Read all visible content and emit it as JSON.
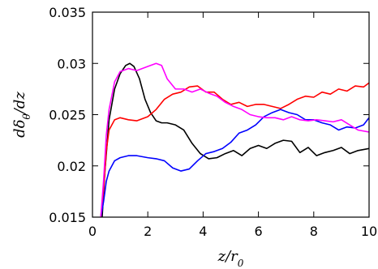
{
  "chart_data": {
    "type": "line",
    "xlabel": "z/r0",
    "ylabel": "dδθ/dz",
    "xlim": [
      0,
      10
    ],
    "ylim": [
      0.015,
      0.035
    ],
    "xticks": [
      0,
      2,
      4,
      6,
      8,
      10
    ],
    "xtick_labels": [
      "0",
      "2",
      "4",
      "6",
      "8",
      "10"
    ],
    "yticks": [
      0.015,
      0.02,
      0.025,
      0.03,
      0.035
    ],
    "ytick_labels": [
      "0.015",
      "0.02",
      "0.025",
      "0.03",
      "0.035"
    ],
    "grid": false,
    "legend": "none",
    "series": [
      {
        "color": "#000000",
        "x": [
          0.35,
          0.45,
          0.6,
          0.8,
          1.0,
          1.2,
          1.35,
          1.5,
          1.7,
          1.9,
          2.1,
          2.3,
          2.5,
          2.7,
          3.0,
          3.3,
          3.6,
          3.9,
          4.2,
          4.5,
          4.8,
          5.1,
          5.4,
          5.7,
          6.0,
          6.3,
          6.6,
          6.9,
          7.2,
          7.5,
          7.8,
          8.1,
          8.4,
          8.7,
          9.0,
          9.3,
          9.6,
          10.0
        ],
        "y": [
          0.015,
          0.0195,
          0.0245,
          0.0275,
          0.029,
          0.0298,
          0.03,
          0.0297,
          0.0285,
          0.0265,
          0.0252,
          0.0244,
          0.0242,
          0.0242,
          0.024,
          0.0235,
          0.0222,
          0.0212,
          0.0207,
          0.0208,
          0.0212,
          0.0215,
          0.021,
          0.0217,
          0.022,
          0.0217,
          0.0222,
          0.0225,
          0.0224,
          0.0213,
          0.0218,
          0.021,
          0.0213,
          0.0215,
          0.0218,
          0.0212,
          0.0215,
          0.0217
        ]
      },
      {
        "color": "#ff0000",
        "x": [
          0.3,
          0.4,
          0.5,
          0.6,
          0.8,
          1.0,
          1.3,
          1.6,
          2.0,
          2.3,
          2.6,
          2.9,
          3.2,
          3.5,
          3.8,
          4.1,
          4.4,
          4.7,
          5.0,
          5.3,
          5.6,
          5.9,
          6.2,
          6.5,
          6.8,
          7.1,
          7.4,
          7.7,
          8.0,
          8.3,
          8.6,
          8.9,
          9.2,
          9.5,
          9.8,
          10.0
        ],
        "y": [
          0.015,
          0.0175,
          0.0215,
          0.0235,
          0.0245,
          0.0247,
          0.0245,
          0.0244,
          0.0248,
          0.0255,
          0.0265,
          0.027,
          0.0272,
          0.0277,
          0.0278,
          0.0272,
          0.0272,
          0.0265,
          0.026,
          0.0262,
          0.0258,
          0.026,
          0.026,
          0.0258,
          0.0256,
          0.026,
          0.0265,
          0.0268,
          0.0267,
          0.0272,
          0.027,
          0.0275,
          0.0273,
          0.0278,
          0.0277,
          0.0281
        ]
      },
      {
        "color": "#0000ff",
        "x": [
          0.3,
          0.4,
          0.5,
          0.6,
          0.8,
          1.0,
          1.3,
          1.6,
          2.0,
          2.3,
          2.6,
          2.9,
          3.2,
          3.5,
          3.8,
          4.1,
          4.4,
          4.7,
          5.0,
          5.3,
          5.6,
          5.9,
          6.2,
          6.5,
          6.8,
          7.1,
          7.4,
          7.7,
          8.0,
          8.3,
          8.6,
          8.9,
          9.2,
          9.5,
          9.8,
          10.0
        ],
        "y": [
          0.015,
          0.0165,
          0.0185,
          0.0195,
          0.0205,
          0.0208,
          0.021,
          0.021,
          0.0208,
          0.0207,
          0.0205,
          0.0198,
          0.0195,
          0.0197,
          0.0205,
          0.0212,
          0.0214,
          0.0217,
          0.0223,
          0.0232,
          0.0235,
          0.024,
          0.0248,
          0.0252,
          0.0255,
          0.0252,
          0.025,
          0.0245,
          0.0245,
          0.0242,
          0.024,
          0.0235,
          0.0238,
          0.0237,
          0.024,
          0.0247
        ]
      },
      {
        "color": "#ff00ff",
        "x": [
          0.3,
          0.4,
          0.5,
          0.6,
          0.8,
          1.0,
          1.3,
          1.6,
          2.0,
          2.3,
          2.5,
          2.7,
          3.0,
          3.3,
          3.6,
          3.9,
          4.2,
          4.5,
          4.8,
          5.1,
          5.4,
          5.7,
          6.0,
          6.3,
          6.6,
          6.9,
          7.2,
          7.5,
          7.8,
          8.1,
          8.4,
          8.7,
          9.0,
          9.3,
          9.6,
          10.0
        ],
        "y": [
          0.015,
          0.0185,
          0.023,
          0.0255,
          0.0282,
          0.0292,
          0.0295,
          0.0293,
          0.0297,
          0.03,
          0.0298,
          0.0285,
          0.0275,
          0.0275,
          0.0272,
          0.0275,
          0.0271,
          0.0268,
          0.0262,
          0.0258,
          0.0255,
          0.025,
          0.0248,
          0.0247,
          0.0247,
          0.0245,
          0.0248,
          0.0245,
          0.0244,
          0.0245,
          0.0244,
          0.0243,
          0.0245,
          0.024,
          0.0235,
          0.0233
        ]
      }
    ]
  }
}
